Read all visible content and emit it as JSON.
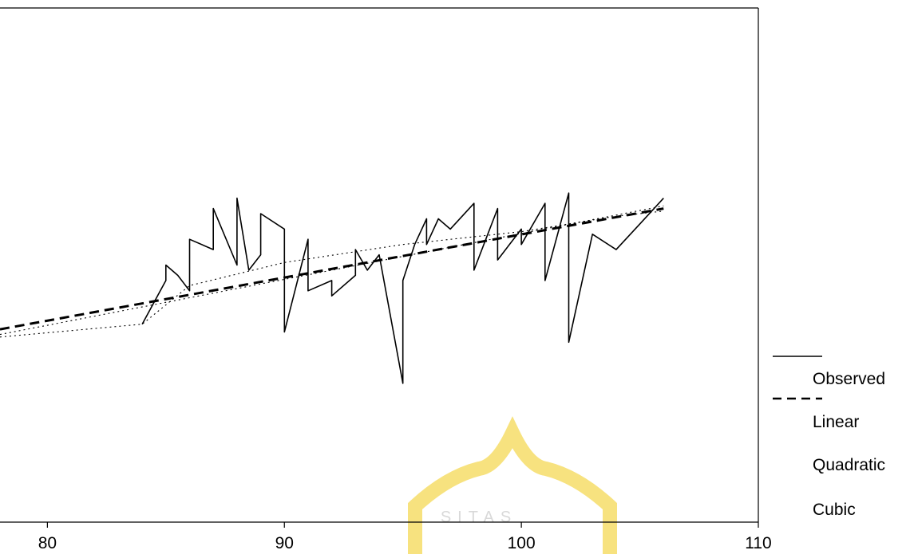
{
  "chart_data": {
    "type": "line",
    "title": "",
    "xlabel": "",
    "ylabel": "",
    "xlim": [
      78,
      110
    ],
    "ylim": [
      0,
      100
    ],
    "x_ticks": [
      80,
      90,
      100,
      110
    ],
    "x_tick_labels": [
      "80",
      "90",
      "100",
      "110"
    ],
    "grid": false,
    "legend_position": "right",
    "watermark_text": "SITAS",
    "series": [
      {
        "name": "Observed",
        "style": "solid",
        "points": [
          [
            84,
            38.5
          ],
          [
            85,
            47
          ],
          [
            85,
            50
          ],
          [
            85.5,
            48
          ],
          [
            86,
            45
          ],
          [
            86,
            55
          ],
          [
            87,
            53
          ],
          [
            87,
            61
          ],
          [
            88,
            50
          ],
          [
            88,
            63
          ],
          [
            88.5,
            49
          ],
          [
            89,
            52
          ],
          [
            89,
            60
          ],
          [
            90,
            57
          ],
          [
            90,
            41
          ],
          [
            90,
            37
          ],
          [
            91,
            55
          ],
          [
            91,
            45
          ],
          [
            92,
            47
          ],
          [
            92,
            44
          ],
          [
            93,
            48
          ],
          [
            93,
            53
          ],
          [
            93.5,
            49
          ],
          [
            94,
            52
          ],
          [
            95,
            27
          ],
          [
            95,
            47
          ],
          [
            95.5,
            54
          ],
          [
            96,
            59
          ],
          [
            96,
            54
          ],
          [
            96.5,
            59
          ],
          [
            97,
            57
          ],
          [
            98,
            62
          ],
          [
            98,
            49
          ],
          [
            98.5,
            55
          ],
          [
            99,
            61
          ],
          [
            99,
            51
          ],
          [
            100,
            57
          ],
          [
            100,
            54
          ],
          [
            101,
            62
          ],
          [
            101,
            47
          ],
          [
            102,
            64
          ],
          [
            102,
            35
          ],
          [
            103,
            56
          ],
          [
            104,
            53
          ],
          [
            105,
            58
          ],
          [
            106,
            63
          ]
        ]
      },
      {
        "name": "Linear",
        "style": "dashed",
        "points": [
          [
            78,
            37.5
          ],
          [
            106,
            61
          ]
        ]
      },
      {
        "name": "Quadratic",
        "style": "dotted",
        "points": [
          [
            78,
            36
          ],
          [
            84,
            38.5
          ],
          [
            86,
            46
          ],
          [
            90,
            50.5
          ],
          [
            95,
            54
          ],
          [
            100,
            56.5
          ],
          [
            102,
            58
          ],
          [
            104,
            59.5
          ],
          [
            106,
            60.5
          ]
        ]
      },
      {
        "name": "Cubic",
        "style": "dotted",
        "points": [
          [
            78,
            36.5
          ],
          [
            106,
            61.5
          ]
        ]
      }
    ],
    "colors": {
      "line": "#000000",
      "frame": "#000000",
      "background": "#ffffff",
      "watermark": "#f3d23a"
    }
  },
  "legend": {
    "items": [
      {
        "label": "Observed",
        "style": "solid"
      },
      {
        "label": "Linear",
        "style": "dashed"
      },
      {
        "label": "Quadratic",
        "style": "dotted"
      },
      {
        "label": "Cubic",
        "style": "dotted"
      }
    ]
  }
}
